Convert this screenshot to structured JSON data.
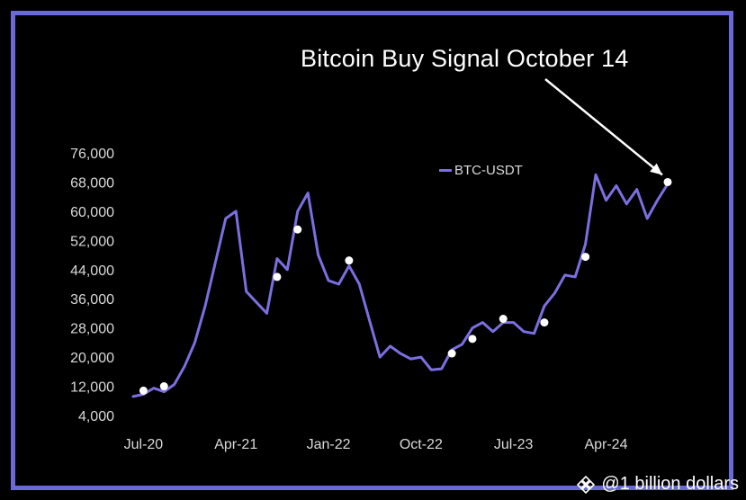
{
  "chart_data": {
    "type": "line",
    "title": "Bitcoin Buy Signal October 14",
    "xlabel": "",
    "ylabel": "",
    "ylim": [
      4000,
      76000
    ],
    "y_ticks": [
      "76,000",
      "68,000",
      "60,000",
      "52,000",
      "44,000",
      "36,000",
      "28,000",
      "20,000",
      "12,000",
      "4,000"
    ],
    "y_tick_values": [
      76000,
      68000,
      60000,
      52000,
      44000,
      36000,
      28000,
      20000,
      12000,
      4000
    ],
    "x_ticks": [
      "Jul-20",
      "Apr-21",
      "Jan-22",
      "Oct-22",
      "Jul-23",
      "Apr-24"
    ],
    "x_tick_values": [
      "2020-07",
      "2021-04",
      "2022-01",
      "2022-10",
      "2023-07",
      "2024-04"
    ],
    "legend_position": "top-right",
    "series": [
      {
        "name": "BTC-USDT",
        "color": "#7b6fe0",
        "points": [
          [
            "2020-06",
            9200
          ],
          [
            "2020-07",
            9800
          ],
          [
            "2020-08",
            11500
          ],
          [
            "2020-09",
            10500
          ],
          [
            "2020-10",
            12500
          ],
          [
            "2020-11",
            17500
          ],
          [
            "2020-12",
            24000
          ],
          [
            "2021-01",
            34000
          ],
          [
            "2021-02",
            46000
          ],
          [
            "2021-03",
            58000
          ],
          [
            "2021-04",
            60000
          ],
          [
            "2021-05",
            38000
          ],
          [
            "2021-06",
            35000
          ],
          [
            "2021-07",
            32000
          ],
          [
            "2021-08",
            47000
          ],
          [
            "2021-09",
            44000
          ],
          [
            "2021-10",
            60000
          ],
          [
            "2021-11",
            65000
          ],
          [
            "2021-12",
            48000
          ],
          [
            "2022-01",
            41000
          ],
          [
            "2022-02",
            40000
          ],
          [
            "2022-03",
            45000
          ],
          [
            "2022-04",
            40000
          ],
          [
            "2022-05",
            30000
          ],
          [
            "2022-06",
            20000
          ],
          [
            "2022-07",
            23000
          ],
          [
            "2022-08",
            21000
          ],
          [
            "2022-09",
            19500
          ],
          [
            "2022-10",
            20000
          ],
          [
            "2022-11",
            16500
          ],
          [
            "2022-12",
            16800
          ],
          [
            "2023-01",
            22000
          ],
          [
            "2023-02",
            23500
          ],
          [
            "2023-03",
            28000
          ],
          [
            "2023-04",
            29500
          ],
          [
            "2023-05",
            27000
          ],
          [
            "2023-06",
            29500
          ],
          [
            "2023-07",
            29500
          ],
          [
            "2023-08",
            27000
          ],
          [
            "2023-09",
            26500
          ],
          [
            "2023-10",
            34000
          ],
          [
            "2023-11",
            37500
          ],
          [
            "2023-12",
            42500
          ],
          [
            "2024-01",
            42000
          ],
          [
            "2024-02",
            51000
          ],
          [
            "2024-03",
            70000
          ],
          [
            "2024-04",
            63000
          ],
          [
            "2024-05",
            67000
          ],
          [
            "2024-06",
            62000
          ],
          [
            "2024-07",
            66000
          ],
          [
            "2024-08",
            58000
          ],
          [
            "2024-09",
            63000
          ],
          [
            "2024-10",
            67500
          ]
        ]
      }
    ],
    "buy_signals": [
      [
        "2020-07",
        10800
      ],
      [
        "2020-09",
        12000
      ],
      [
        "2021-08",
        42000
      ],
      [
        "2021-10",
        55000
      ],
      [
        "2022-03",
        46500
      ],
      [
        "2023-01",
        21000
      ],
      [
        "2023-03",
        25000
      ],
      [
        "2023-06",
        30500
      ],
      [
        "2023-10",
        29500
      ],
      [
        "2024-02",
        47500
      ],
      [
        "2024-10",
        68000
      ]
    ],
    "annotation": {
      "text": "Bitcoin Buy Signal October 14",
      "points_to": [
        "2024-10",
        68000
      ]
    }
  },
  "watermark": {
    "text": "@1 billion dollars",
    "icon": "binance-diamond-icon"
  },
  "colors": {
    "frame": "#6a6ad6",
    "line": "#7b6fe0",
    "signal": "#ffffff",
    "background": "#000000"
  }
}
